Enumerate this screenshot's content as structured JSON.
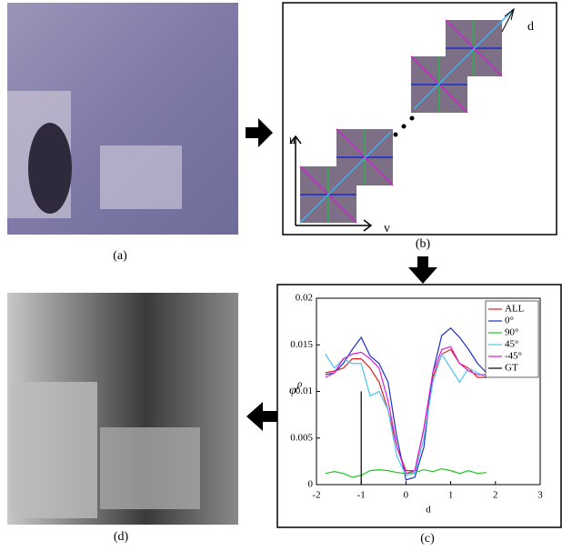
{
  "figure": {
    "panels": [
      "(a)",
      "(b)",
      "(c)",
      "(d)"
    ],
    "diagram_labels": {
      "u": "u",
      "v": "v",
      "d": "d"
    }
  },
  "chart_data": {
    "type": "line",
    "xlabel": "d",
    "ylabel": "φ",
    "ylabel_sup": "ρ",
    "xlim": [
      -2,
      3
    ],
    "ylim": [
      0,
      0.02
    ],
    "xticks": [
      -2,
      -1,
      0,
      1,
      2,
      3
    ],
    "yticks": [
      0,
      0.005,
      0.01,
      0.015,
      0.02
    ],
    "legend": "upper right",
    "x": [
      -1.8,
      -1.6,
      -1.4,
      -1.2,
      -1.0,
      -0.8,
      -0.6,
      -0.4,
      -0.2,
      0,
      0.2,
      0.4,
      0.6,
      0.8,
      1.0,
      1.2,
      1.4,
      1.6,
      1.8
    ],
    "series": [
      {
        "name": "ALL",
        "color": "#e0201b",
        "values": [
          0.012,
          0.0122,
          0.0125,
          0.0135,
          0.0135,
          0.0125,
          0.011,
          0.008,
          0.004,
          0.0015,
          0.0015,
          0.006,
          0.0115,
          0.014,
          0.0145,
          0.013,
          0.0125,
          0.0115,
          0.0115
        ]
      },
      {
        "name": "0°",
        "color": "#1f2fc8",
        "values": [
          0.0118,
          0.012,
          0.013,
          0.0145,
          0.0158,
          0.0138,
          0.013,
          0.011,
          0.005,
          0.0005,
          0.0008,
          0.004,
          0.012,
          0.016,
          0.0168,
          0.0158,
          0.0145,
          0.013,
          0.012
        ]
      },
      {
        "name": "90°",
        "color": "#22c322",
        "values": [
          0.0012,
          0.0014,
          0.0012,
          0.0008,
          0.001,
          0.0015,
          0.0016,
          0.0015,
          0.0013,
          0.0012,
          0.0013,
          0.0016,
          0.0014,
          0.0017,
          0.0015,
          0.0012,
          0.0015,
          0.0012,
          0.0013
        ]
      },
      {
        "name": "45°",
        "color": "#4fc3f0",
        "values": [
          0.014,
          0.0125,
          0.0135,
          0.013,
          0.013,
          0.0095,
          0.01,
          0.008,
          0.003,
          0.001,
          0.0012,
          0.005,
          0.011,
          0.014,
          0.0125,
          0.011,
          0.0125,
          0.012,
          0.0115
        ]
      },
      {
        "name": "-45°",
        "color": "#d820d0",
        "values": [
          0.0115,
          0.012,
          0.0135,
          0.014,
          0.0142,
          0.0135,
          0.0125,
          0.009,
          0.004,
          0.0012,
          0.0015,
          0.006,
          0.012,
          0.0145,
          0.0148,
          0.013,
          0.0122,
          0.0118,
          0.0118
        ]
      },
      {
        "name": "GT",
        "color": "#000000",
        "x": [
          -1,
          -1
        ],
        "values": [
          0,
          0.01
        ]
      }
    ]
  }
}
